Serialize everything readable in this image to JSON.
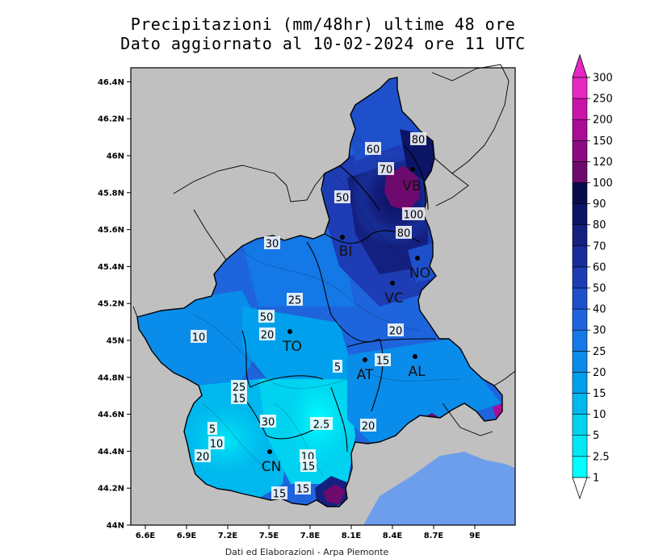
{
  "title": {
    "line1": "Precipitazioni (mm/48hr) ultime 48 ore",
    "line2": "Dato aggiornato al 10-02-2024 ore 11 UTC"
  },
  "credit": "Dati ed Elaborazioni - Arpa Piemonte",
  "axes": {
    "lon_ticks": [
      "6.6E",
      "6.9E",
      "7.2E",
      "7.5E",
      "7.8E",
      "8.1E",
      "8.4E",
      "8.7E",
      "9E"
    ],
    "lat_ticks": [
      "44N",
      "44.2N",
      "44.4N",
      "44.6N",
      "44.8N",
      "45N",
      "45.2N",
      "45.4N",
      "45.6N",
      "45.8N",
      "46N",
      "46.2N",
      "46.4N"
    ]
  },
  "colorbar": {
    "labels": [
      "1",
      "2.5",
      "5",
      "10",
      "15",
      "20",
      "25",
      "30",
      "40",
      "50",
      "60",
      "70",
      "80",
      "90",
      "100",
      "120",
      "150",
      "200",
      "250",
      "300"
    ],
    "colors": [
      "#ffffff",
      "#00ffff",
      "#00e8f5",
      "#00d2f0",
      "#00b8ee",
      "#00a0ec",
      "#0a8cea",
      "#1478e6",
      "#1e64dc",
      "#1e50cc",
      "#1e3cb4",
      "#1a2c9c",
      "#142080",
      "#0c1466",
      "#080c4c",
      "#6e0a6e",
      "#8c0a82",
      "#aa0c96",
      "#c814aa",
      "#e628c3"
    ]
  },
  "cities": [
    {
      "code": "VB"
    },
    {
      "code": "BI"
    },
    {
      "code": "NO"
    },
    {
      "code": "VC"
    },
    {
      "code": "TO"
    },
    {
      "code": "AT"
    },
    {
      "code": "AL"
    },
    {
      "code": "CN"
    }
  ],
  "contour_labels": [
    "80",
    "60",
    "70",
    "50",
    "100",
    "80",
    "30",
    "25",
    "50",
    "20",
    "10",
    "20",
    "15",
    "5",
    "25",
    "15",
    "30",
    "2.5",
    "20",
    "5",
    "10",
    "20",
    "10",
    "15",
    "15",
    "15"
  ],
  "colors": {
    "outside_land": "#c0c0c0",
    "sea": "#6d9eeb"
  }
}
